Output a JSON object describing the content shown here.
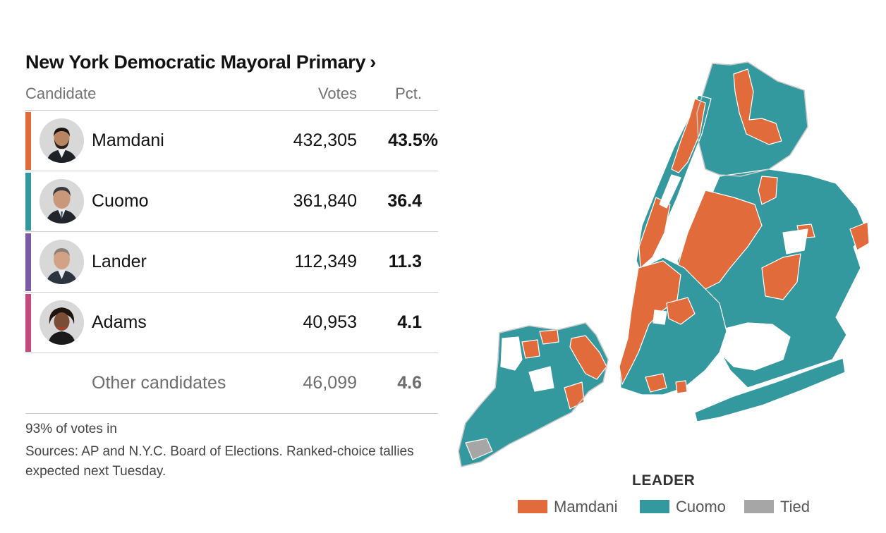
{
  "results": {
    "title": "New York Democratic Mayoral Primary",
    "title_chevron": "›",
    "columns": {
      "candidate": "Candidate",
      "votes": "Votes",
      "pct": "Pct."
    },
    "candidates": [
      {
        "name": "Mamdani",
        "votes": "432,305",
        "pct": "43.5%",
        "color": "#e26b3b"
      },
      {
        "name": "Cuomo",
        "votes": "361,840",
        "pct": "36.4",
        "color": "#33999f"
      },
      {
        "name": "Lander",
        "votes": "112,349",
        "pct": "11.3",
        "color": "#7b5aa6"
      },
      {
        "name": "Adams",
        "votes": "40,953",
        "pct": "4.1",
        "color": "#c24a7e"
      }
    ],
    "other": {
      "name": "Other candidates",
      "votes": "46,099",
      "pct": "4.6"
    },
    "reporting": "93% of votes in",
    "sources": "Sources: AP and N.Y.C. Board of Elections. Ranked-choice tallies expected next Tuesday."
  },
  "map": {
    "legend_title": "LEADER",
    "legend": [
      {
        "label": "Mamdani",
        "color": "#e26b3b"
      },
      {
        "label": "Cuomo",
        "color": "#33999f"
      },
      {
        "label": "Tied",
        "color": "#a6a6a6"
      }
    ]
  },
  "chart_data": {
    "type": "table",
    "title": "New York Democratic Mayoral Primary",
    "columns": [
      "Candidate",
      "Votes",
      "Pct."
    ],
    "rows": [
      [
        "Mamdani",
        432305,
        43.5
      ],
      [
        "Cuomo",
        361840,
        36.4
      ],
      [
        "Lander",
        112349,
        11.3
      ],
      [
        "Adams",
        40953,
        4.1
      ],
      [
        "Other candidates",
        46099,
        4.6
      ]
    ]
  }
}
